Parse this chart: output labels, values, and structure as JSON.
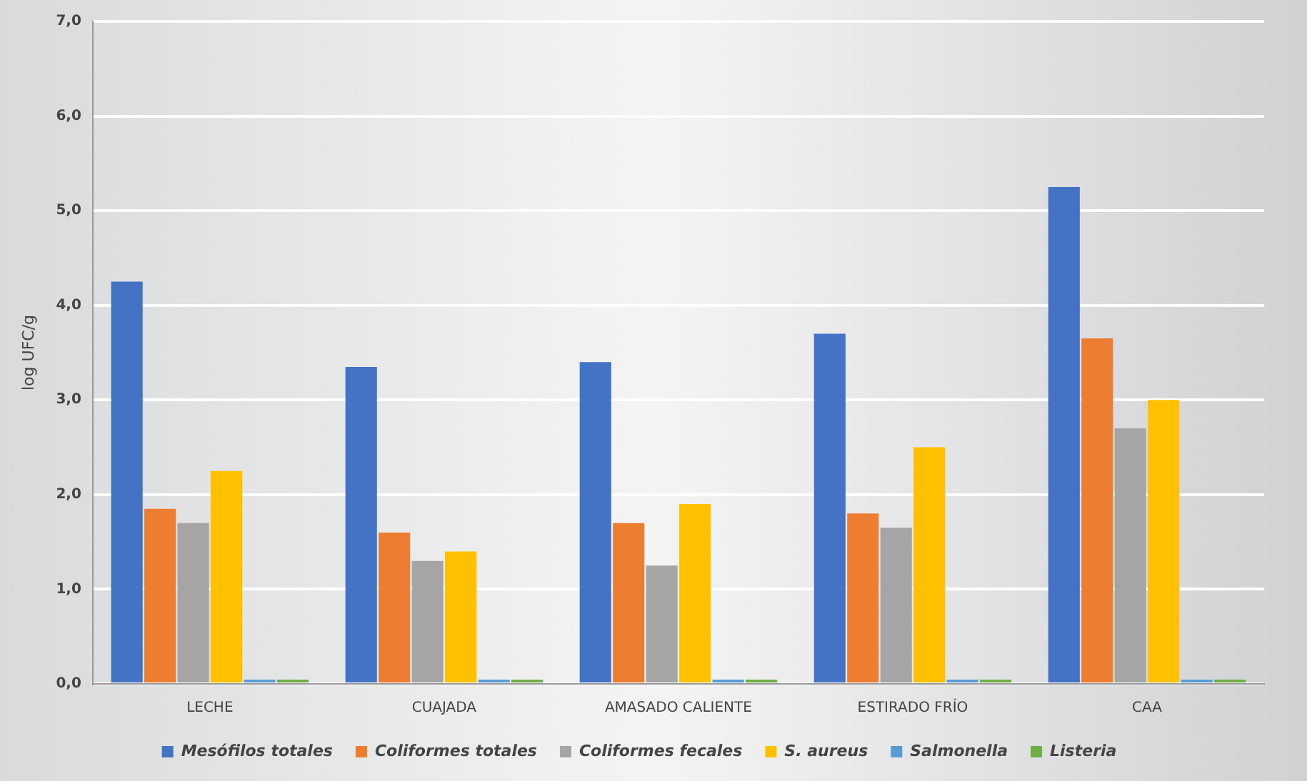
{
  "chart_data": {
    "type": "bar",
    "ylabel": "log UFC/g",
    "categories": [
      "LECHE",
      "CUAJADA",
      "AMASADO CALIENTE",
      "ESTIRADO FRÍO",
      "CAA"
    ],
    "series": [
      {
        "name": "Mesófilos totales",
        "color": "#4472c4",
        "values": [
          4.25,
          3.35,
          3.4,
          3.7,
          5.25
        ]
      },
      {
        "name": "Coliformes totales",
        "color": "#ed7d31",
        "values": [
          1.85,
          1.6,
          1.7,
          1.8,
          3.65
        ]
      },
      {
        "name": "Coliformes fecales",
        "color": "#a5a5a5",
        "values": [
          1.7,
          1.3,
          1.25,
          1.65,
          2.7
        ]
      },
      {
        "name": "S. aureus",
        "color": "#ffc000",
        "values": [
          2.25,
          1.4,
          1.9,
          2.5,
          3.0
        ]
      },
      {
        "name": "Salmonella",
        "color": "#5b9bd5",
        "values": [
          0,
          0,
          0,
          0,
          0
        ]
      },
      {
        "name": "Listeria",
        "color": "#70ad47",
        "values": [
          0,
          0,
          0,
          0,
          0
        ]
      }
    ],
    "ylim": [
      0,
      7
    ],
    "yticks": [
      {
        "value": 0,
        "label": "0,0"
      },
      {
        "value": 1,
        "label": "1,0"
      },
      {
        "value": 2,
        "label": "2,0"
      },
      {
        "value": 3,
        "label": "3,0"
      },
      {
        "value": 4,
        "label": "4,0"
      },
      {
        "value": 5,
        "label": "5,0"
      },
      {
        "value": 6,
        "label": "6,0"
      },
      {
        "value": 7,
        "label": "7,0"
      }
    ],
    "grid": "y",
    "legend": "bottom"
  }
}
